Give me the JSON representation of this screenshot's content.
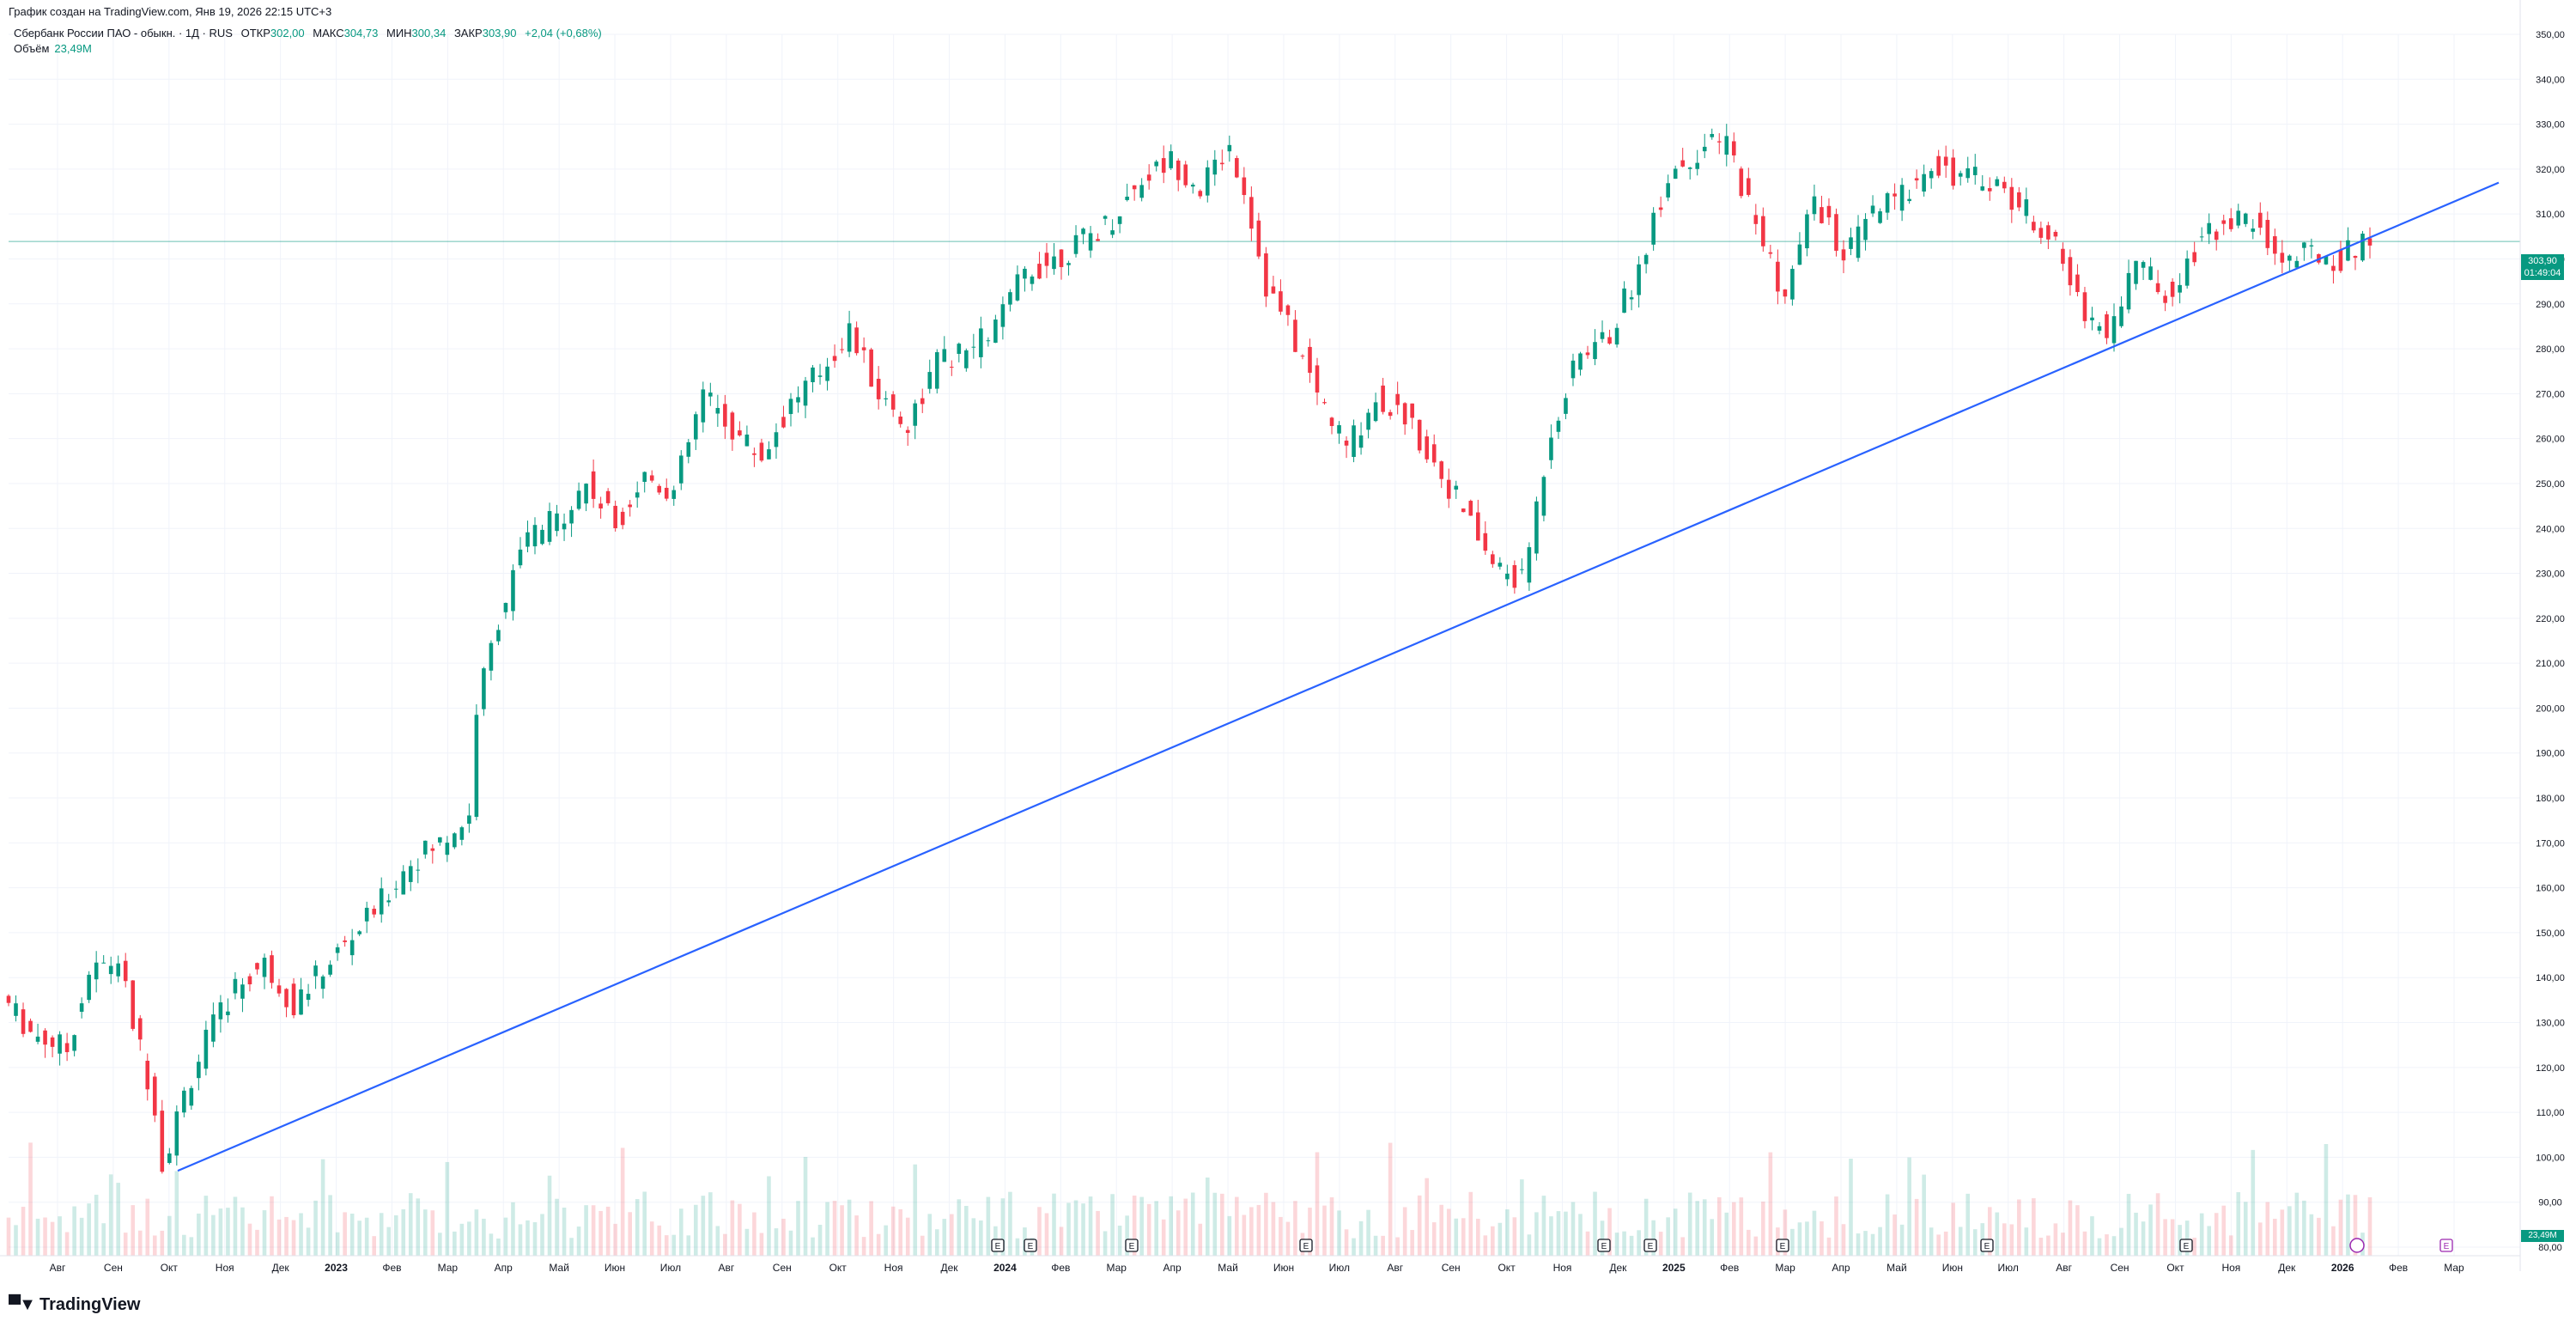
{
  "header": {
    "created": "График создан на TradingView.com, Янв 19, 2026 22:15 UTC+3"
  },
  "legend": {
    "symbol": "Сбербанк России ПАО - обыкн. · 1Д · RUS",
    "open_label": "ОТКР",
    "open_value": "302,00",
    "high_label": "МАКС",
    "high_value": "304,73",
    "low_label": "МИН",
    "low_value": "300,34",
    "close_label": "ЗАКР",
    "close_value": "303,90",
    "change": "+2,04 (+0,68%)",
    "volume_label": "Объём",
    "volume_value": "23,49M"
  },
  "price_tag": {
    "price": "303,90",
    "countdown": "01:49:04"
  },
  "volume_tag": "23,49M",
  "brand": {
    "name": "TradingView"
  },
  "colors": {
    "up": "#089981",
    "down": "#F23645",
    "trendline": "#2962FF",
    "grid": "#F0F3FA"
  },
  "chart_data": {
    "type": "candlestick",
    "y_axis": {
      "min": 80,
      "max": 350,
      "ticks": [
        "350,00",
        "340,00",
        "330,00",
        "320,00",
        "310,00",
        "300,00",
        "290,00",
        "280,00",
        "270,00",
        "260,00",
        "250,00",
        "240,00",
        "230,00",
        "220,00",
        "210,00",
        "200,00",
        "190,00",
        "180,00",
        "170,00",
        "160,00",
        "150,00",
        "140,00",
        "130,00",
        "120,00",
        "110,00",
        "100,00",
        "90,00",
        "80,00"
      ]
    },
    "x_axis_labels": [
      "Авг",
      "Сен",
      "Окт",
      "Ноя",
      "Дек",
      "2023",
      "Фев",
      "Мар",
      "Апр",
      "Май",
      "Июн",
      "Июл",
      "Авг",
      "Сен",
      "Окт",
      "Ноя",
      "Дек",
      "2024",
      "Фев",
      "Мар",
      "Апр",
      "Май",
      "Июн",
      "Июл",
      "Авг",
      "Сен",
      "Окт",
      "Ноя",
      "Дек",
      "2025",
      "Фев",
      "Мар",
      "Апр",
      "Май",
      "Июн",
      "Июл",
      "Авг",
      "Сен",
      "Окт",
      "Ноя",
      "Дек",
      "2026",
      "Фев",
      "Мар"
    ],
    "bold_x_labels": [
      "2023",
      "2024",
      "2025",
      "2026"
    ],
    "last_price": 303.9,
    "price_path": [
      [
        0,
        136
      ],
      [
        4,
        128
      ],
      [
        9,
        124
      ],
      [
        12,
        141
      ],
      [
        16,
        144
      ],
      [
        18,
        130
      ],
      [
        21,
        112
      ],
      [
        22,
        98
      ],
      [
        25,
        114
      ],
      [
        28,
        126
      ],
      [
        32,
        138
      ],
      [
        36,
        143
      ],
      [
        40,
        134
      ],
      [
        44,
        142
      ],
      [
        48,
        149
      ],
      [
        52,
        157
      ],
      [
        56,
        166
      ],
      [
        60,
        170
      ],
      [
        64,
        176
      ],
      [
        65,
        200
      ],
      [
        68,
        220
      ],
      [
        72,
        238
      ],
      [
        76,
        242
      ],
      [
        80,
        250
      ],
      [
        84,
        241
      ],
      [
        88,
        252
      ],
      [
        92,
        248
      ],
      [
        96,
        270
      ],
      [
        100,
        262
      ],
      [
        104,
        256
      ],
      [
        108,
        268
      ],
      [
        112,
        275
      ],
      [
        116,
        284
      ],
      [
        120,
        270
      ],
      [
        124,
        263
      ],
      [
        128,
        277
      ],
      [
        132,
        279
      ],
      [
        136,
        285
      ],
      [
        140,
        297
      ],
      [
        144,
        300
      ],
      [
        148,
        304
      ],
      [
        152,
        309
      ],
      [
        156,
        318
      ],
      [
        160,
        322
      ],
      [
        164,
        316
      ],
      [
        168,
        325
      ],
      [
        170,
        316
      ],
      [
        173,
        294
      ],
      [
        176,
        285
      ],
      [
        180,
        270
      ],
      [
        184,
        258
      ],
      [
        188,
        269
      ],
      [
        192,
        265
      ],
      [
        196,
        255
      ],
      [
        200,
        244
      ],
      [
        204,
        232
      ],
      [
        208,
        228
      ],
      [
        212,
        262
      ],
      [
        216,
        279
      ],
      [
        220,
        283
      ],
      [
        224,
        298
      ],
      [
        228,
        319
      ],
      [
        232,
        324
      ],
      [
        236,
        326
      ],
      [
        240,
        308
      ],
      [
        244,
        291
      ],
      [
        248,
        314
      ],
      [
        252,
        300
      ],
      [
        256,
        310
      ],
      [
        260,
        314
      ],
      [
        264,
        322
      ],
      [
        268,
        318
      ],
      [
        272,
        318
      ],
      [
        276,
        312
      ],
      [
        280,
        306
      ],
      [
        284,
        291
      ],
      [
        288,
        283
      ],
      [
        292,
        300
      ],
      [
        296,
        292
      ],
      [
        300,
        302
      ],
      [
        304,
        309
      ],
      [
        308,
        308
      ],
      [
        312,
        300
      ],
      [
        316,
        301
      ],
      [
        320,
        300
      ],
      [
        323,
        303.9
      ]
    ],
    "trendline": {
      "start": [
        "Окт 2022",
        97
      ],
      "end": [
        "Мар 2026",
        317
      ]
    },
    "earnings_markers": 10
  }
}
